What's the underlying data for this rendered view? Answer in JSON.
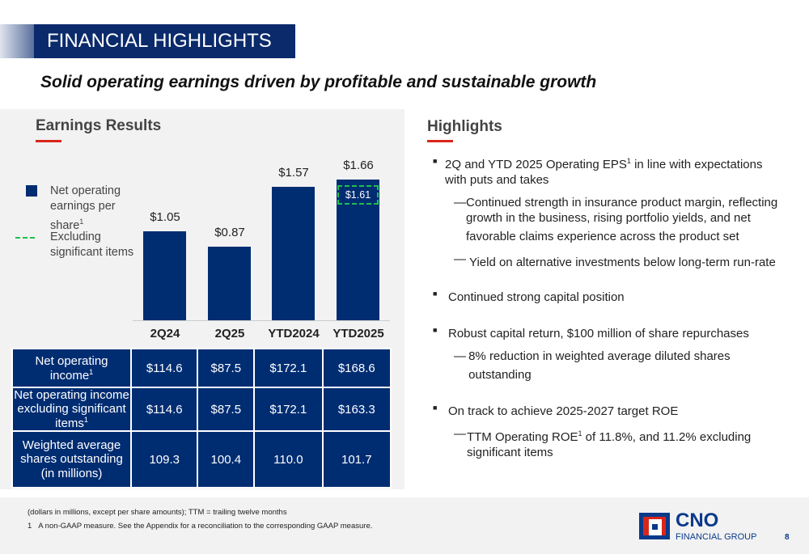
{
  "header": {
    "title": "FINANCIAL HIGHLIGHTS",
    "subtitle": "Solid operating earnings driven by profitable and sustainable growth"
  },
  "earnings": {
    "heading": "Earnings Results",
    "legend": [
      {
        "label": "Net operating earnings per share",
        "sup": "1"
      },
      {
        "label": "Excluding significant items"
      }
    ]
  },
  "chart_data": {
    "type": "bar",
    "categories": [
      "2Q24",
      "2Q25",
      "YTD2024",
      "YTD2025"
    ],
    "series": [
      {
        "name": "Net operating earnings per share",
        "values": [
          1.05,
          0.87,
          1.57,
          1.66
        ],
        "labels": [
          "$1.05",
          "$0.87",
          "$1.57",
          "$1.66"
        ]
      },
      {
        "name": "Excluding significant items",
        "values": [
          null,
          null,
          null,
          1.61
        ],
        "labels": [
          "",
          "",
          "",
          "$1.61"
        ]
      }
    ],
    "ylim": [
      0,
      1.66
    ],
    "grid": false,
    "legend_position": "left",
    "colors": {
      "bar": "#002d72",
      "excluding": "#1fbf4f"
    }
  },
  "table": {
    "rows": [
      {
        "label": "Net operating income",
        "sup": "1",
        "values": [
          "$114.6",
          "$87.5",
          "$172.1",
          "$168.6"
        ]
      },
      {
        "label": "Net operating income excluding significant items",
        "sup": "1",
        "values": [
          "$114.6",
          "$87.5",
          "$172.1",
          "$163.3"
        ]
      },
      {
        "label": "Weighted average shares outstanding (in millions)",
        "sup": "",
        "values": [
          "109.3",
          "100.4",
          "110.0",
          "101.7"
        ]
      }
    ]
  },
  "highlights": {
    "heading": "Highlights",
    "items": [
      {
        "text": "2Q and YTD 2025 Operating EPS",
        "sup": "1",
        "rest": " in line with expectations with puts and takes",
        "sub": [
          {
            "text": "Continued strength in insurance product margin, reflecting growth in the business, rising portfolio yields, and net favorable claims experience across the product set"
          },
          {
            "text": "Yield on alternative investments below long-term run-rate"
          }
        ]
      },
      {
        "text": "Continued strong capital position",
        "sup": "",
        "rest": "",
        "sub": []
      },
      {
        "text": "Robust capital return, $100 million of share repurchases",
        "sup": "",
        "rest": "",
        "sub": [
          {
            "text": "8% reduction in weighted average diluted shares outstanding"
          }
        ]
      },
      {
        "text": "On track to achieve 2025-2027 target ROE",
        "sup": "",
        "rest": "",
        "sub": [
          {
            "text": "TTM Operating ROE",
            "sup": "1",
            "rest": " of 11.8%, and 11.2% excluding significant items"
          }
        ]
      }
    ]
  },
  "footer": {
    "note": "(dollars in millions, except per share amounts); TTM = trailing twelve months",
    "footnote_num": "1",
    "footnote": "A non-GAAP measure. See the Appendix for a reconciliation to the corresponding GAAP measure.",
    "logo_main": "CNO",
    "logo_sub": "FINANCIAL GROUP",
    "page": "8"
  }
}
